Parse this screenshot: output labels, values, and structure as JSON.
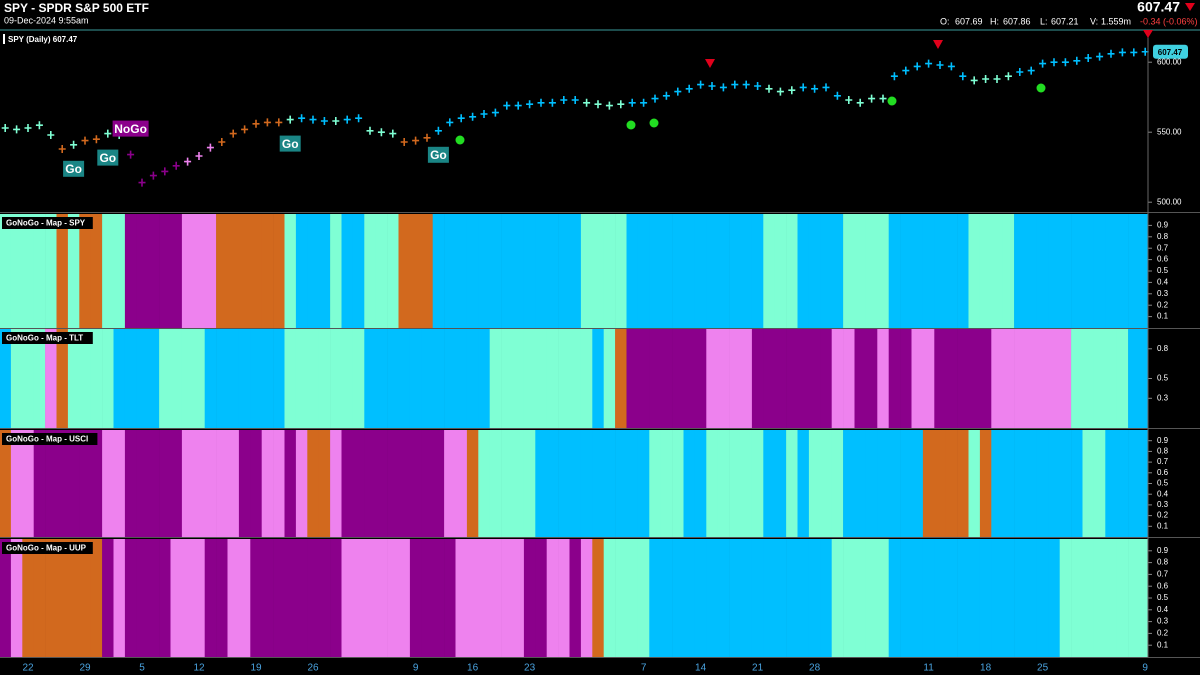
{
  "header": {
    "title": "SPY - SPDR S&P 500 ETF",
    "timestamp": "09-Dec-2024 9:55am",
    "quote": [
      {
        "label": "O:",
        "value": "607.69"
      },
      {
        "label": "H:",
        "value": "607.86"
      },
      {
        "label": "L:",
        "value": "607.21"
      },
      {
        "label": "V:",
        "value": "1.559m"
      }
    ],
    "change": "-0.34 (-0.06%)"
  },
  "chart_data": [
    {
      "type": "price-bars",
      "series": [
        {
          "name": "SPY (Daily)",
          "values": [
            553,
            552,
            553,
            555,
            548,
            538,
            541,
            544,
            545,
            549,
            548,
            534,
            514,
            519,
            522,
            526,
            529,
            533,
            539,
            543,
            549,
            552,
            556,
            557,
            557,
            559,
            560,
            559,
            558,
            558,
            559,
            560,
            551,
            550,
            549,
            543,
            544,
            546,
            551,
            557,
            560,
            561,
            563,
            564,
            569,
            569,
            570,
            571,
            571,
            573,
            573,
            571,
            570,
            569,
            570,
            571,
            571,
            574,
            576,
            579,
            581,
            584,
            583,
            582,
            584,
            584,
            583,
            581,
            579,
            580,
            582,
            581,
            582,
            576,
            573,
            571,
            574,
            574,
            590,
            594,
            597,
            599,
            598,
            597,
            590,
            587,
            588,
            588,
            590,
            593,
            594,
            599,
            600,
            600,
            601,
            603,
            604,
            606,
            607,
            607,
            607.47
          ]
        }
      ],
      "categories": [
        null,
        null,
        "22",
        null,
        null,
        null,
        null,
        "29",
        null,
        null,
        null,
        null,
        "5",
        null,
        null,
        null,
        null,
        "12",
        null,
        null,
        null,
        null,
        "19",
        null,
        null,
        null,
        null,
        "26",
        null,
        null,
        null,
        null,
        null,
        null,
        null,
        null,
        "9",
        null,
        null,
        null,
        null,
        "16",
        null,
        null,
        null,
        null,
        "23",
        null,
        null,
        null,
        null,
        null,
        null,
        null,
        null,
        null,
        "7",
        null,
        null,
        null,
        null,
        "14",
        null,
        null,
        null,
        null,
        "21",
        null,
        null,
        null,
        null,
        "28",
        null,
        null,
        null,
        null,
        null,
        null,
        null,
        null,
        null,
        "11",
        null,
        null,
        null,
        null,
        "18",
        null,
        null,
        null,
        null,
        "25",
        null,
        null,
        null,
        null,
        null,
        null,
        null,
        null,
        "9"
      ],
      "labels": [
        null,
        null,
        null,
        null,
        null,
        null,
        "Go",
        null,
        null,
        "Go",
        null,
        "NoGo",
        null,
        null,
        null,
        null,
        null,
        null,
        null,
        null,
        null,
        null,
        null,
        null,
        null,
        "Go",
        null,
        null,
        null,
        null,
        null,
        null,
        null,
        null,
        null,
        null,
        null,
        null,
        "Go",
        null,
        null,
        null,
        null,
        null,
        null,
        null,
        null,
        null,
        null,
        null,
        null,
        null,
        null,
        null,
        null,
        null,
        null,
        null,
        null,
        null,
        null,
        null,
        null,
        null,
        null,
        null,
        null,
        null,
        null,
        null,
        null,
        null,
        null,
        null,
        null,
        null,
        null,
        null,
        null,
        null,
        null,
        null,
        null,
        null,
        null,
        null,
        null,
        null,
        null,
        null,
        null,
        null,
        null,
        null,
        null,
        null,
        null,
        null,
        null,
        null,
        null
      ],
      "ylim": [
        493,
        623
      ],
      "yticks": [
        {
          "value": 500,
          "label": "500.00"
        },
        {
          "value": 550,
          "label": "550.00"
        },
        {
          "value": 600,
          "label": "600.00"
        }
      ]
    },
    {
      "type": "map-strip",
      "title": "GoNoGo - Map - SPY",
      "ylim": [
        0,
        1
      ],
      "yticks": [
        0.1,
        0.2,
        0.3,
        0.4,
        0.5,
        0.6,
        0.7,
        0.8,
        0.9
      ],
      "colors": [
        "aquamarine",
        "aquamarine",
        "aquamarine",
        "aquamarine",
        "aquamarine",
        "chocolate",
        "aquamarine",
        "chocolate",
        "chocolate",
        "aquamarine",
        "aquamarine",
        "darkmagenta",
        "darkmagenta",
        "darkmagenta",
        "darkmagenta",
        "darkmagenta",
        "violet",
        "violet",
        "violet",
        "chocolate",
        "chocolate",
        "chocolate",
        "chocolate",
        "chocolate",
        "chocolate",
        "aquamarine",
        "deepskyblue",
        "deepskyblue",
        "deepskyblue",
        "aquamarine",
        "deepskyblue",
        "deepskyblue",
        "aquamarine",
        "aquamarine",
        "aquamarine",
        "chocolate",
        "chocolate",
        "chocolate",
        "deepskyblue",
        "deepskyblue",
        "deepskyblue",
        "deepskyblue",
        "deepskyblue",
        "deepskyblue",
        "deepskyblue",
        "deepskyblue",
        "deepskyblue",
        "deepskyblue",
        "deepskyblue",
        "deepskyblue",
        "deepskyblue",
        "aquamarine",
        "aquamarine",
        "aquamarine",
        "aquamarine",
        "deepskyblue",
        "deepskyblue",
        "deepskyblue",
        "deepskyblue",
        "deepskyblue",
        "deepskyblue",
        "deepskyblue",
        "deepskyblue",
        "deepskyblue",
        "deepskyblue",
        "deepskyblue",
        "deepskyblue",
        "aquamarine",
        "aquamarine",
        "aquamarine",
        "deepskyblue",
        "deepskyblue",
        "deepskyblue",
        "deepskyblue",
        "aquamarine",
        "aquamarine",
        "aquamarine",
        "aquamarine",
        "deepskyblue",
        "deepskyblue",
        "deepskyblue",
        "deepskyblue",
        "deepskyblue",
        "deepskyblue",
        "deepskyblue",
        "aquamarine",
        "aquamarine",
        "aquamarine",
        "aquamarine",
        "deepskyblue",
        "deepskyblue",
        "deepskyblue",
        "deepskyblue",
        "deepskyblue",
        "deepskyblue",
        "deepskyblue",
        "deepskyblue",
        "deepskyblue",
        "deepskyblue",
        "deepskyblue",
        "deepskyblue"
      ]
    },
    {
      "type": "map-strip",
      "title": "GoNoGo - Map - TLT",
      "ylim": [
        0,
        1
      ],
      "yticks": [
        0.3,
        0.5,
        0.8
      ],
      "colors": [
        "deepskyblue",
        "aquamarine",
        "aquamarine",
        "aquamarine",
        "violet",
        "chocolate",
        "aquamarine",
        "aquamarine",
        "aquamarine",
        "aquamarine",
        "deepskyblue",
        "deepskyblue",
        "deepskyblue",
        "deepskyblue",
        "aquamarine",
        "aquamarine",
        "aquamarine",
        "aquamarine",
        "deepskyblue",
        "deepskyblue",
        "deepskyblue",
        "deepskyblue",
        "deepskyblue",
        "deepskyblue",
        "deepskyblue",
        "aquamarine",
        "aquamarine",
        "aquamarine",
        "aquamarine",
        "aquamarine",
        "aquamarine",
        "aquamarine",
        "deepskyblue",
        "deepskyblue",
        "deepskyblue",
        "deepskyblue",
        "deepskyblue",
        "deepskyblue",
        "deepskyblue",
        "deepskyblue",
        "deepskyblue",
        "deepskyblue",
        "deepskyblue",
        "aquamarine",
        "aquamarine",
        "aquamarine",
        "aquamarine",
        "aquamarine",
        "aquamarine",
        "aquamarine",
        "aquamarine",
        "aquamarine",
        "deepskyblue",
        "aquamarine",
        "chocolate",
        "darkmagenta",
        "darkmagenta",
        "darkmagenta",
        "darkmagenta",
        "darkmagenta",
        "darkmagenta",
        "darkmagenta",
        "violet",
        "violet",
        "violet",
        "violet",
        "darkmagenta",
        "darkmagenta",
        "darkmagenta",
        "darkmagenta",
        "darkmagenta",
        "darkmagenta",
        "darkmagenta",
        "violet",
        "violet",
        "darkmagenta",
        "darkmagenta",
        "violet",
        "darkmagenta",
        "darkmagenta",
        "violet",
        "violet",
        "darkmagenta",
        "darkmagenta",
        "darkmagenta",
        "darkmagenta",
        "darkmagenta",
        "violet",
        "violet",
        "violet",
        "violet",
        "violet",
        "violet",
        "violet",
        "aquamarine",
        "aquamarine",
        "aquamarine",
        "aquamarine",
        "aquamarine",
        "deepskyblue",
        "deepskyblue"
      ]
    },
    {
      "type": "map-strip",
      "title": "GoNoGo - Map - USCI",
      "ylim": [
        0,
        1
      ],
      "yticks": [
        0.1,
        0.2,
        0.3,
        0.4,
        0.5,
        0.6,
        0.7,
        0.8,
        0.9
      ],
      "colors": [
        "chocolate",
        "violet",
        "violet",
        "darkmagenta",
        "darkmagenta",
        "darkmagenta",
        "darkmagenta",
        "darkmagenta",
        "darkmagenta",
        "violet",
        "violet",
        "darkmagenta",
        "darkmagenta",
        "darkmagenta",
        "darkmagenta",
        "darkmagenta",
        "violet",
        "violet",
        "violet",
        "violet",
        "violet",
        "darkmagenta",
        "darkmagenta",
        "violet",
        "violet",
        "darkmagenta",
        "violet",
        "chocolate",
        "chocolate",
        "violet",
        "darkmagenta",
        "darkmagenta",
        "darkmagenta",
        "darkmagenta",
        "darkmagenta",
        "darkmagenta",
        "darkmagenta",
        "darkmagenta",
        "darkmagenta",
        "violet",
        "violet",
        "chocolate",
        "aquamarine",
        "aquamarine",
        "aquamarine",
        "aquamarine",
        "aquamarine",
        "deepskyblue",
        "deepskyblue",
        "deepskyblue",
        "deepskyblue",
        "deepskyblue",
        "deepskyblue",
        "deepskyblue",
        "deepskyblue",
        "deepskyblue",
        "deepskyblue",
        "aquamarine",
        "aquamarine",
        "aquamarine",
        "deepskyblue",
        "deepskyblue",
        "aquamarine",
        "aquamarine",
        "aquamarine",
        "aquamarine",
        "aquamarine",
        "deepskyblue",
        "deepskyblue",
        "aquamarine",
        "deepskyblue",
        "aquamarine",
        "aquamarine",
        "aquamarine",
        "deepskyblue",
        "deepskyblue",
        "deepskyblue",
        "deepskyblue",
        "deepskyblue",
        "deepskyblue",
        "deepskyblue",
        "chocolate",
        "chocolate",
        "chocolate",
        "chocolate",
        "aquamarine",
        "chocolate",
        "deepskyblue",
        "deepskyblue",
        "deepskyblue",
        "deepskyblue",
        "deepskyblue",
        "deepskyblue",
        "deepskyblue",
        "deepskyblue",
        "aquamarine",
        "aquamarine",
        "deepskyblue",
        "deepskyblue",
        "deepskyblue",
        "deepskyblue"
      ]
    },
    {
      "type": "map-strip",
      "title": "GoNoGo - Map - UUP",
      "ylim": [
        0,
        1
      ],
      "yticks": [
        0.1,
        0.2,
        0.3,
        0.4,
        0.5,
        0.6,
        0.7,
        0.8,
        0.9
      ],
      "colors": [
        "darkmagenta",
        "violet",
        "chocolate",
        "chocolate",
        "chocolate",
        "chocolate",
        "chocolate",
        "chocolate",
        "chocolate",
        "darkmagenta",
        "violet",
        "darkmagenta",
        "darkmagenta",
        "darkmagenta",
        "darkmagenta",
        "violet",
        "violet",
        "violet",
        "darkmagenta",
        "darkmagenta",
        "violet",
        "violet",
        "darkmagenta",
        "darkmagenta",
        "darkmagenta",
        "darkmagenta",
        "darkmagenta",
        "darkmagenta",
        "darkmagenta",
        "darkmagenta",
        "violet",
        "violet",
        "violet",
        "violet",
        "violet",
        "violet",
        "darkmagenta",
        "darkmagenta",
        "darkmagenta",
        "darkmagenta",
        "violet",
        "violet",
        "violet",
        "violet",
        "violet",
        "violet",
        "darkmagenta",
        "darkmagenta",
        "violet",
        "violet",
        "darkmagenta",
        "violet",
        "chocolate",
        "aquamarine",
        "aquamarine",
        "aquamarine",
        "aquamarine",
        "deepskyblue",
        "deepskyblue",
        "deepskyblue",
        "deepskyblue",
        "deepskyblue",
        "deepskyblue",
        "deepskyblue",
        "deepskyblue",
        "deepskyblue",
        "deepskyblue",
        "deepskyblue",
        "deepskyblue",
        "deepskyblue",
        "deepskyblue",
        "deepskyblue",
        "deepskyblue",
        "aquamarine",
        "aquamarine",
        "aquamarine",
        "aquamarine",
        "aquamarine",
        "deepskyblue",
        "deepskyblue",
        "deepskyblue",
        "deepskyblue",
        "deepskyblue",
        "deepskyblue",
        "deepskyblue",
        "deepskyblue",
        "deepskyblue",
        "deepskyblue",
        "deepskyblue",
        "deepskyblue",
        "deepskyblue",
        "deepskyblue",
        "deepskyblue",
        "aquamarine",
        "aquamarine",
        "aquamarine",
        "aquamarine",
        "aquamarine",
        "aquamarine",
        "aquamarine",
        "aquamarine"
      ]
    }
  ]
}
